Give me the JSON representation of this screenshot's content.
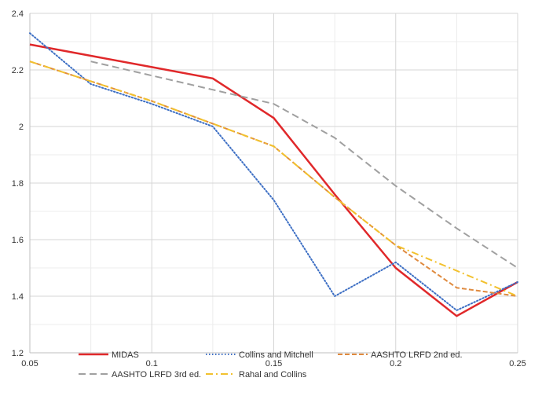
{
  "chart_data": {
    "type": "line",
    "title": "",
    "xlabel": "",
    "ylabel": "",
    "xlim": [
      0.05,
      0.25
    ],
    "ylim": [
      1.2,
      2.4
    ],
    "x_ticks": [
      0.05,
      0.1,
      0.15,
      0.2,
      0.25
    ],
    "x_tick_labels": [
      "0.05",
      "0.1",
      "0.15",
      "0.2",
      "0.25"
    ],
    "y_ticks": [
      1.2,
      1.4,
      1.6,
      1.8,
      2.0,
      2.2,
      2.4
    ],
    "y_tick_labels": [
      "1.2",
      "1.4",
      "1.6",
      "1.8",
      "2",
      "2.2",
      "2.4"
    ],
    "grid": true,
    "minor_grid": true,
    "legend_position": "bottom-inside",
    "series": [
      {
        "name": "MIDAS",
        "color": "#e0282a",
        "dash": "solid",
        "points": [
          [
            0.05,
            2.29
          ],
          [
            0.075,
            2.25
          ],
          [
            0.1,
            2.21
          ],
          [
            0.125,
            2.17
          ],
          [
            0.15,
            2.03
          ],
          [
            0.175,
            1.76
          ],
          [
            0.2,
            1.5
          ],
          [
            0.225,
            1.33
          ],
          [
            0.25,
            1.45
          ]
        ]
      },
      {
        "name": "Collins and Mitchell",
        "color": "#3d6fc4",
        "dash": "dotted",
        "points": [
          [
            0.05,
            2.33
          ],
          [
            0.075,
            2.15
          ],
          [
            0.1,
            2.08
          ],
          [
            0.125,
            2.0
          ],
          [
            0.15,
            1.74
          ],
          [
            0.175,
            1.4
          ],
          [
            0.2,
            1.52
          ],
          [
            0.225,
            1.35
          ],
          [
            0.25,
            1.45
          ]
        ]
      },
      {
        "name": "AASHTO LRFD 2nd  ed.",
        "color": "#df8a3e",
        "dash": "dashed",
        "points": [
          [
            0.05,
            2.23
          ],
          [
            0.075,
            2.16
          ],
          [
            0.1,
            2.09
          ],
          [
            0.125,
            2.01
          ],
          [
            0.15,
            1.93
          ],
          [
            0.175,
            1.75
          ],
          [
            0.2,
            1.58
          ],
          [
            0.225,
            1.43
          ],
          [
            0.25,
            1.4
          ]
        ]
      },
      {
        "name": "AASHTO LRFD 3rd  ed.",
        "color": "#a0a0a0",
        "dash": "longdash",
        "points": [
          [
            0.075,
            2.23
          ],
          [
            0.1,
            2.18
          ],
          [
            0.125,
            2.13
          ],
          [
            0.15,
            2.08
          ],
          [
            0.175,
            1.96
          ],
          [
            0.2,
            1.79
          ],
          [
            0.225,
            1.64
          ],
          [
            0.25,
            1.5
          ]
        ]
      },
      {
        "name": "Rahal and Collins",
        "color": "#f2c12e",
        "dash": "dashdot",
        "points": [
          [
            0.05,
            2.23
          ],
          [
            0.075,
            2.16
          ],
          [
            0.1,
            2.09
          ],
          [
            0.125,
            2.01
          ],
          [
            0.15,
            1.93
          ],
          [
            0.175,
            1.75
          ],
          [
            0.2,
            1.58
          ],
          [
            0.225,
            1.49
          ],
          [
            0.25,
            1.4
          ]
        ]
      }
    ]
  }
}
